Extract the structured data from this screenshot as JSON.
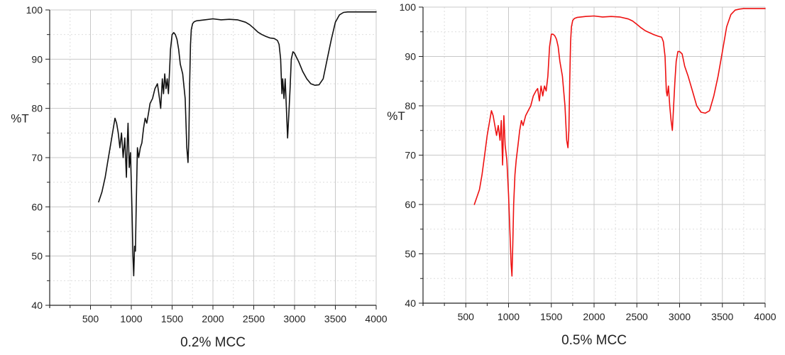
{
  "chart_data": [
    {
      "type": "line",
      "title": "0.2% MCC",
      "xlabel": "",
      "ylabel": "%T",
      "xlim": [
        0,
        4000
      ],
      "ylim": [
        40,
        100
      ],
      "xticks": [
        500,
        1000,
        1500,
        2000,
        2500,
        3000,
        3500,
        4000
      ],
      "yticks": [
        40,
        50,
        60,
        70,
        80,
        90,
        100
      ],
      "grid": true,
      "color": "#111111",
      "series": [
        {
          "x": [
            600,
            640,
            680,
            710,
            740,
            760,
            780,
            800,
            820,
            840,
            860,
            880,
            900,
            920,
            940,
            950,
            960,
            975,
            990,
            1000,
            1010,
            1020,
            1030,
            1040,
            1050,
            1060,
            1075,
            1090,
            1110,
            1130,
            1150,
            1170,
            1190,
            1210,
            1230,
            1260,
            1290,
            1320,
            1345,
            1360,
            1380,
            1395,
            1410,
            1425,
            1440,
            1455,
            1470,
            1480,
            1500,
            1520,
            1540,
            1560,
            1580,
            1600,
            1630,
            1660,
            1680,
            1695,
            1705,
            1715,
            1725,
            1735,
            1750,
            1770,
            1800,
            1900,
            2000,
            2100,
            2200,
            2300,
            2400,
            2450,
            2500,
            2550,
            2600,
            2650,
            2700,
            2750,
            2790,
            2810,
            2830,
            2845,
            2855,
            2870,
            2885,
            2900,
            2915,
            2930,
            2945,
            2960,
            2980,
            3000,
            3020,
            3050,
            3100,
            3150,
            3200,
            3250,
            3300,
            3350,
            3400,
            3450,
            3500,
            3550,
            3600,
            3650,
            3700,
            3750,
            3800,
            3850,
            3900,
            3950,
            4000
          ],
          "y": [
            61,
            63,
            66,
            69,
            72,
            74,
            76,
            78,
            77,
            75,
            72,
            75,
            70,
            74,
            66,
            73,
            77,
            68,
            71,
            65,
            58,
            50,
            46,
            52,
            51,
            60,
            72,
            70,
            72,
            73,
            76,
            78,
            77,
            79,
            81,
            82,
            84,
            85,
            82,
            80,
            86,
            83,
            87,
            84,
            86,
            83,
            88,
            92,
            95,
            95.4,
            95,
            94,
            92,
            89,
            87,
            82,
            72,
            69,
            74,
            85,
            93,
            96,
            97.2,
            97.6,
            97.8,
            98,
            98.2,
            98,
            98.1,
            98,
            97.5,
            97,
            96.3,
            95.5,
            95,
            94.6,
            94.3,
            94.2,
            93.8,
            93,
            90,
            83,
            86,
            82,
            86,
            80,
            74,
            79,
            84,
            90,
            91.5,
            91.2,
            90.5,
            89.5,
            87.5,
            86,
            85,
            84.7,
            84.8,
            86,
            90,
            94,
            97.5,
            99,
            99.5,
            99.6,
            99.6,
            99.6,
            99.6,
            99.6,
            99.6,
            99.6,
            99.6
          ]
        }
      ]
    },
    {
      "type": "line",
      "title": "0.5% MCC",
      "xlabel": "",
      "ylabel": "%T",
      "xlim": [
        0,
        4000
      ],
      "ylim": [
        40,
        100
      ],
      "xticks": [
        500,
        1000,
        1500,
        2000,
        2500,
        3000,
        3500,
        4000
      ],
      "yticks": [
        40,
        50,
        60,
        70,
        80,
        90,
        100
      ],
      "grid": true,
      "color": "#ee1111",
      "series": [
        {
          "x": [
            600,
            630,
            660,
            690,
            720,
            750,
            780,
            800,
            820,
            840,
            860,
            880,
            900,
            915,
            930,
            945,
            960,
            980,
            1000,
            1015,
            1030,
            1040,
            1050,
            1060,
            1075,
            1090,
            1110,
            1130,
            1150,
            1170,
            1200,
            1230,
            1260,
            1290,
            1320,
            1340,
            1360,
            1380,
            1400,
            1420,
            1440,
            1460,
            1480,
            1500,
            1520,
            1540,
            1560,
            1580,
            1600,
            1630,
            1660,
            1680,
            1695,
            1705,
            1715,
            1725,
            1735,
            1750,
            1770,
            1800,
            1900,
            2000,
            2100,
            2200,
            2300,
            2400,
            2450,
            2500,
            2550,
            2600,
            2650,
            2700,
            2750,
            2790,
            2810,
            2830,
            2845,
            2855,
            2870,
            2885,
            2900,
            2915,
            2930,
            2945,
            2960,
            2980,
            3000,
            3030,
            3060,
            3100,
            3150,
            3200,
            3250,
            3300,
            3350,
            3400,
            3450,
            3500,
            3550,
            3600,
            3650,
            3700,
            3750,
            3800,
            3850,
            3900,
            3950,
            4000
          ],
          "y": [
            60,
            61.5,
            63,
            66,
            70,
            74,
            77,
            79,
            78,
            76,
            74,
            76,
            73,
            77,
            68,
            78,
            72,
            69,
            62,
            55,
            48,
            45.5,
            52,
            60,
            66,
            69,
            72,
            75,
            77,
            76,
            78,
            79,
            80,
            82,
            83,
            83.5,
            81,
            84,
            82,
            84,
            83,
            86,
            92,
            94.5,
            94.5,
            94.2,
            93.5,
            92,
            89,
            86,
            80,
            73,
            71.5,
            75,
            85,
            93,
            96,
            97.3,
            97.7,
            97.9,
            98.1,
            98.2,
            98,
            98.1,
            98,
            97.6,
            97.2,
            96.5,
            95.8,
            95.2,
            94.8,
            94.4,
            94.1,
            93.9,
            93,
            90,
            83,
            82,
            84,
            80,
            77,
            75,
            80,
            85,
            89,
            91,
            91,
            90.5,
            88,
            86,
            83,
            80,
            78.7,
            78.5,
            79,
            82,
            86,
            91,
            96,
            98.5,
            99.4,
            99.6,
            99.7,
            99.7,
            99.7,
            99.7,
            99.7,
            99.7
          ]
        }
      ]
    }
  ]
}
